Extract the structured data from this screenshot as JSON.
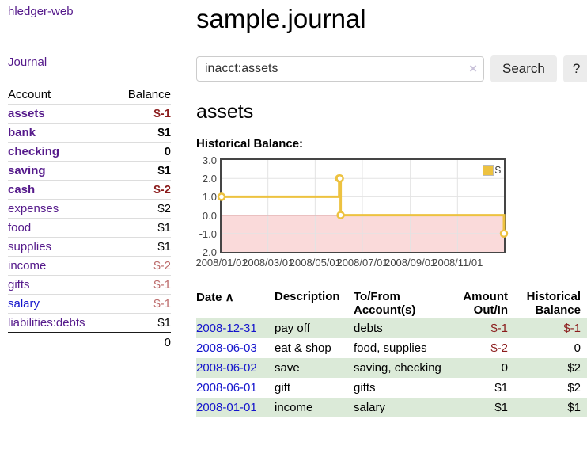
{
  "app": {
    "title": "hledger-web"
  },
  "sidebar": {
    "nav": {
      "journal_label": "Journal"
    },
    "table": {
      "headers": [
        "Account",
        "Balance"
      ],
      "accounts": [
        {
          "name": "assets",
          "depth": 1,
          "bold": true,
          "balance": "$-1",
          "balance_tone": "neg-strong",
          "link_tone": "visited"
        },
        {
          "name": "bank",
          "depth": 2,
          "bold": true,
          "balance": "$1",
          "balance_tone": "normal",
          "link_tone": "visited"
        },
        {
          "name": "checking",
          "depth": 3,
          "bold": true,
          "balance": "0",
          "balance_tone": "normal",
          "link_tone": "visited"
        },
        {
          "name": "saving",
          "depth": 3,
          "bold": true,
          "balance": "$1",
          "balance_tone": "normal",
          "link_tone": "visited"
        },
        {
          "name": "cash",
          "depth": 2,
          "bold": true,
          "balance": "$-2",
          "balance_tone": "neg-strong",
          "link_tone": "visited"
        },
        {
          "name": "expenses",
          "depth": 1,
          "bold": false,
          "balance": "$2",
          "balance_tone": "normal",
          "link_tone": "visited"
        },
        {
          "name": "food",
          "depth": 2,
          "bold": false,
          "balance": "$1",
          "balance_tone": "normal",
          "link_tone": "visited"
        },
        {
          "name": "supplies",
          "depth": 2,
          "bold": false,
          "balance": "$1",
          "balance_tone": "normal",
          "link_tone": "visited"
        },
        {
          "name": "income",
          "depth": 1,
          "bold": false,
          "balance": "$-2",
          "balance_tone": "neg-soft",
          "link_tone": "visited"
        },
        {
          "name": "gifts",
          "depth": 2,
          "bold": false,
          "balance": "$-1",
          "balance_tone": "neg-soft",
          "link_tone": "visited"
        },
        {
          "name": "salary",
          "depth": 2,
          "bold": false,
          "balance": "$-1",
          "balance_tone": "neg-soft",
          "link_tone": "unvisited"
        },
        {
          "name": "liabilities:debts",
          "depth": 1,
          "bold": false,
          "balance": "$1",
          "balance_tone": "normal",
          "link_tone": "visited"
        }
      ],
      "total": "0"
    }
  },
  "header": {
    "title": "sample.journal"
  },
  "search": {
    "value": "inacct:assets",
    "clear_icon": "×",
    "button_label": "Search",
    "help_label": "?"
  },
  "account_page": {
    "heading": "assets",
    "chart_label": "Historical Balance:"
  },
  "chart_data": {
    "type": "line",
    "title": "Historical Balance",
    "step": true,
    "series": [
      {
        "name": "$",
        "color": "#edc240",
        "points": [
          {
            "date": "2008-01-01",
            "value": 1
          },
          {
            "date": "2008-06-01",
            "value": 2
          },
          {
            "date": "2008-06-02",
            "value": 2
          },
          {
            "date": "2008-06-03",
            "value": 0
          },
          {
            "date": "2008-12-31",
            "value": -1
          }
        ]
      }
    ],
    "x_range": [
      "2008-01-01",
      "2008-12-31"
    ],
    "ylim": [
      -2,
      3
    ],
    "yticks": [
      3.0,
      2.0,
      1.0,
      0.0,
      -1.0,
      -2.0
    ],
    "xticks": [
      "2008/01/01",
      "2008/03/01",
      "2008/05/01",
      "2008/07/01",
      "2008/09/01",
      "2008/11/01"
    ],
    "legend": {
      "label": "$",
      "position": "top-right"
    },
    "grid": true,
    "grid_color": "#e3e3e3",
    "negative_region_color": "#fadada",
    "zero_line_color": "#8b0000"
  },
  "transactions": {
    "columns": [
      {
        "label": "Date",
        "sort_icon": "∧",
        "align": "left"
      },
      {
        "label": "Description",
        "align": "left"
      },
      {
        "label": "To/From\nAccount(s)",
        "align": "left"
      },
      {
        "label": "Amount\nOut/In",
        "align": "right"
      },
      {
        "label": "Historical\nBalance",
        "align": "right"
      }
    ],
    "rows": [
      {
        "date": "2008-12-31",
        "description": "pay off",
        "accounts": "debts",
        "amount": "$-1",
        "balance": "$-1"
      },
      {
        "date": "2008-06-03",
        "description": "eat & shop",
        "accounts": "food, supplies",
        "amount": "$-2",
        "balance": "0"
      },
      {
        "date": "2008-06-02",
        "description": "save",
        "accounts": "saving, checking",
        "amount": "0",
        "balance": "$2"
      },
      {
        "date": "2008-06-01",
        "description": "gift",
        "accounts": "gifts",
        "amount": "$1",
        "balance": "$2"
      },
      {
        "date": "2008-01-01",
        "description": "income",
        "accounts": "salary",
        "amount": "$1",
        "balance": "$1"
      }
    ]
  },
  "colors": {
    "link_purple": "#551a8b",
    "link_blue": "#1414cc",
    "negative_strong": "#8b1c1c",
    "negative_soft": "#bc6a6a",
    "row_stripe_green": "#dbead8",
    "series_gold": "#edc240"
  }
}
